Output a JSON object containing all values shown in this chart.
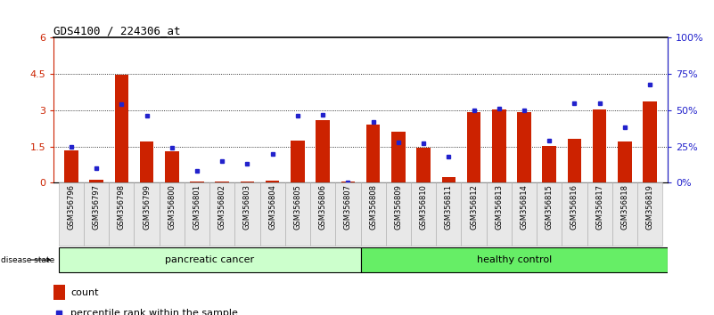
{
  "title": "GDS4100 / 224306_at",
  "samples": [
    "GSM356796",
    "GSM356797",
    "GSM356798",
    "GSM356799",
    "GSM356800",
    "GSM356801",
    "GSM356802",
    "GSM356803",
    "GSM356804",
    "GSM356805",
    "GSM356806",
    "GSM356807",
    "GSM356808",
    "GSM356809",
    "GSM356810",
    "GSM356811",
    "GSM356812",
    "GSM356813",
    "GSM356814",
    "GSM356815",
    "GSM356816",
    "GSM356817",
    "GSM356818",
    "GSM356819"
  ],
  "counts": [
    1.35,
    0.12,
    4.48,
    1.72,
    1.3,
    0.05,
    0.05,
    0.05,
    0.1,
    1.75,
    2.6,
    0.05,
    2.42,
    2.1,
    1.45,
    0.22,
    2.93,
    3.05,
    2.93,
    1.52,
    1.8,
    3.05,
    1.72,
    3.38
  ],
  "percentiles": [
    25,
    10,
    54,
    46,
    24,
    8,
    15,
    13,
    20,
    46,
    47,
    0,
    42,
    28,
    27,
    18,
    50,
    51,
    50,
    29,
    55,
    55,
    38,
    68
  ],
  "group1_count": 12,
  "group2_count": 12,
  "group1_label": "pancreatic cancer",
  "group2_label": "healthy control",
  "group1_color": "#ccffcc",
  "group2_color": "#66ee66",
  "bar_color": "#cc2200",
  "dot_color": "#2222cc",
  "ylim_left": [
    0,
    6
  ],
  "ylim_right": [
    0,
    100
  ],
  "yticks_left": [
    0,
    1.5,
    3.0,
    4.5,
    6.0
  ],
  "yticks_right": [
    0,
    25,
    50,
    75,
    100
  ],
  "ytick_labels_left": [
    "0",
    "1.5",
    "3",
    "4.5",
    "6"
  ],
  "ytick_labels_right": [
    "0%",
    "25%",
    "50%",
    "75%",
    "100%"
  ],
  "bg_color": "#e8e8e8",
  "plot_bg_color": "#ffffff",
  "fig_width": 8.01,
  "fig_height": 3.54,
  "dpi": 100
}
